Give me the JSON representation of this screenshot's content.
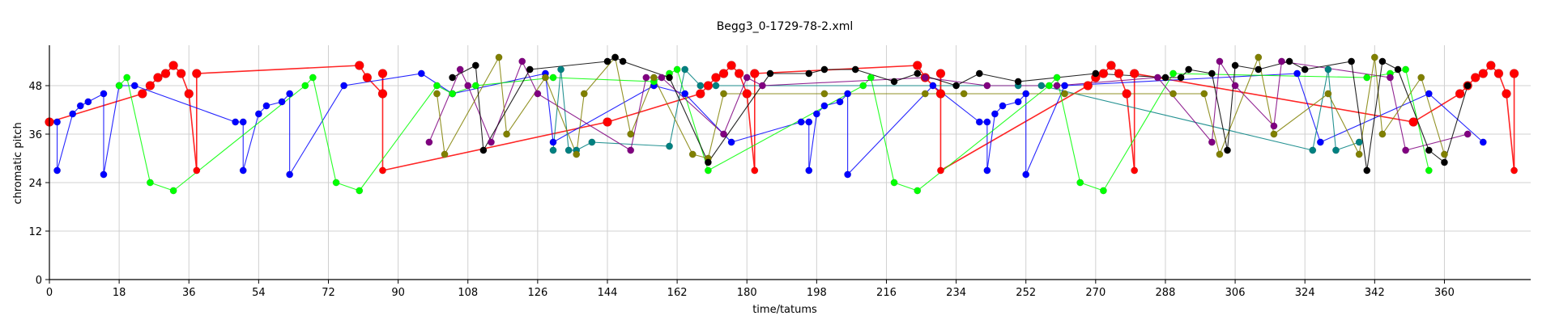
{
  "chart_data": {
    "type": "scatter",
    "title": "Begg3_0-1729-78-2.xml",
    "xlabel": "time/tatums",
    "ylabel": "chromatic pitch",
    "xlim": [
      0,
      376
    ],
    "ylim": [
      0,
      58
    ],
    "grid": true,
    "x_ticks": [
      0,
      18,
      36,
      54,
      72,
      90,
      108,
      126,
      144,
      162,
      180,
      198,
      216,
      234,
      252,
      270,
      288,
      306,
      324,
      342,
      360
    ],
    "y_ticks": [
      0,
      12,
      24,
      36,
      48
    ],
    "series": [
      {
        "color": "#ff0000",
        "points": [
          [
            0,
            39
          ],
          [
            24,
            46
          ],
          [
            26,
            48
          ],
          [
            28,
            50
          ],
          [
            30,
            51
          ],
          [
            32,
            53
          ],
          [
            34,
            51
          ],
          [
            36,
            46
          ],
          [
            38,
            27
          ],
          [
            38,
            51
          ],
          [
            80,
            53
          ],
          [
            82,
            50
          ],
          [
            86,
            46
          ],
          [
            86,
            51
          ],
          [
            86,
            27
          ],
          [
            144,
            39
          ],
          [
            168,
            46
          ],
          [
            170,
            48
          ],
          [
            172,
            50
          ],
          [
            174,
            51
          ],
          [
            176,
            53
          ],
          [
            178,
            51
          ],
          [
            180,
            46
          ],
          [
            182,
            27
          ],
          [
            182,
            51
          ],
          [
            224,
            53
          ],
          [
            226,
            50
          ],
          [
            230,
            46
          ],
          [
            230,
            51
          ],
          [
            230,
            27
          ],
          [
            268,
            48
          ],
          [
            270,
            50
          ],
          [
            272,
            51
          ],
          [
            274,
            53
          ],
          [
            276,
            51
          ],
          [
            278,
            46
          ],
          [
            280,
            27
          ],
          [
            280,
            51
          ],
          [
            352,
            39
          ],
          [
            364,
            46
          ],
          [
            366,
            48
          ],
          [
            368,
            50
          ],
          [
            370,
            51
          ],
          [
            372,
            53
          ],
          [
            374,
            51
          ],
          [
            376,
            46
          ],
          [
            378,
            27
          ],
          [
            378,
            51
          ]
        ]
      },
      {
        "color": "#0000ff",
        "points": [
          [
            2,
            39
          ],
          [
            2,
            27
          ],
          [
            6,
            41
          ],
          [
            8,
            43
          ],
          [
            10,
            44
          ],
          [
            14,
            46
          ],
          [
            14,
            26
          ],
          [
            18,
            48
          ],
          [
            22,
            48
          ],
          [
            48,
            39
          ],
          [
            50,
            39
          ],
          [
            50,
            27
          ],
          [
            54,
            41
          ],
          [
            56,
            43
          ],
          [
            60,
            44
          ],
          [
            62,
            46
          ],
          [
            62,
            26
          ],
          [
            76,
            48
          ],
          [
            96,
            51
          ],
          [
            104,
            46
          ],
          [
            128,
            51
          ],
          [
            130,
            34
          ],
          [
            156,
            48
          ],
          [
            164,
            46
          ],
          [
            176,
            34
          ],
          [
            194,
            39
          ],
          [
            196,
            39
          ],
          [
            196,
            27
          ],
          [
            198,
            41
          ],
          [
            200,
            43
          ],
          [
            204,
            44
          ],
          [
            206,
            46
          ],
          [
            206,
            26
          ],
          [
            228,
            48
          ],
          [
            240,
            39
          ],
          [
            242,
            39
          ],
          [
            242,
            27
          ],
          [
            244,
            41
          ],
          [
            246,
            43
          ],
          [
            250,
            44
          ],
          [
            252,
            46
          ],
          [
            252,
            26
          ],
          [
            262,
            48
          ],
          [
            322,
            51
          ],
          [
            328,
            34
          ],
          [
            356,
            46
          ],
          [
            370,
            34
          ]
        ]
      },
      {
        "color": "#00ff00",
        "points": [
          [
            18,
            48
          ],
          [
            20,
            50
          ],
          [
            26,
            24
          ],
          [
            32,
            22
          ],
          [
            66,
            48
          ],
          [
            68,
            50
          ],
          [
            74,
            24
          ],
          [
            80,
            22
          ],
          [
            100,
            48
          ],
          [
            104,
            46
          ],
          [
            110,
            48
          ],
          [
            130,
            50
          ],
          [
            156,
            49
          ],
          [
            160,
            51
          ],
          [
            162,
            52
          ],
          [
            170,
            27
          ],
          [
            210,
            48
          ],
          [
            212,
            50
          ],
          [
            218,
            24
          ],
          [
            224,
            22
          ],
          [
            258,
            48
          ],
          [
            260,
            50
          ],
          [
            266,
            24
          ],
          [
            272,
            22
          ],
          [
            290,
            51
          ],
          [
            340,
            50
          ],
          [
            346,
            51
          ],
          [
            350,
            52
          ],
          [
            356,
            27
          ]
        ]
      },
      {
        "color": "#008080",
        "points": [
          [
            130,
            32
          ],
          [
            132,
            52
          ],
          [
            134,
            32
          ],
          [
            136,
            32
          ],
          [
            140,
            34
          ],
          [
            160,
            33
          ],
          [
            164,
            52
          ],
          [
            168,
            48
          ],
          [
            172,
            48
          ],
          [
            250,
            48
          ],
          [
            256,
            48
          ],
          [
            326,
            32
          ],
          [
            330,
            52
          ],
          [
            332,
            32
          ],
          [
            338,
            34
          ]
        ]
      },
      {
        "color": "#800080",
        "points": [
          [
            98,
            34
          ],
          [
            106,
            52
          ],
          [
            108,
            48
          ],
          [
            114,
            34
          ],
          [
            122,
            54
          ],
          [
            126,
            46
          ],
          [
            150,
            32
          ],
          [
            154,
            50
          ],
          [
            158,
            50
          ],
          [
            174,
            36
          ],
          [
            180,
            50
          ],
          [
            184,
            48
          ],
          [
            226,
            50
          ],
          [
            242,
            48
          ],
          [
            260,
            48
          ],
          [
            286,
            50
          ],
          [
            300,
            34
          ],
          [
            302,
            54
          ],
          [
            306,
            48
          ],
          [
            316,
            38
          ],
          [
            318,
            54
          ],
          [
            346,
            50
          ],
          [
            350,
            32
          ],
          [
            366,
            36
          ]
        ]
      },
      {
        "color": "#808000",
        "points": [
          [
            100,
            46
          ],
          [
            102,
            31
          ],
          [
            116,
            55
          ],
          [
            118,
            36
          ],
          [
            128,
            50
          ],
          [
            136,
            31
          ],
          [
            138,
            46
          ],
          [
            146,
            55
          ],
          [
            150,
            36
          ],
          [
            156,
            50
          ],
          [
            166,
            31
          ],
          [
            170,
            30
          ],
          [
            174,
            46
          ],
          [
            200,
            46
          ],
          [
            226,
            46
          ],
          [
            236,
            46
          ],
          [
            262,
            46
          ],
          [
            290,
            46
          ],
          [
            298,
            46
          ],
          [
            302,
            31
          ],
          [
            312,
            55
          ],
          [
            316,
            36
          ],
          [
            330,
            46
          ],
          [
            338,
            31
          ],
          [
            342,
            55
          ],
          [
            344,
            36
          ],
          [
            354,
            50
          ],
          [
            360,
            31
          ]
        ]
      },
      {
        "color": "#000000",
        "points": [
          [
            104,
            50
          ],
          [
            110,
            53
          ],
          [
            112,
            32
          ],
          [
            124,
            52
          ],
          [
            144,
            54
          ],
          [
            146,
            55
          ],
          [
            148,
            54
          ],
          [
            160,
            50
          ],
          [
            170,
            29
          ],
          [
            186,
            51
          ],
          [
            196,
            51
          ],
          [
            200,
            52
          ],
          [
            208,
            52
          ],
          [
            218,
            49
          ],
          [
            224,
            51
          ],
          [
            234,
            48
          ],
          [
            240,
            51
          ],
          [
            250,
            49
          ],
          [
            270,
            51
          ],
          [
            288,
            50
          ],
          [
            292,
            50
          ],
          [
            294,
            52
          ],
          [
            300,
            51
          ],
          [
            304,
            32
          ],
          [
            306,
            53
          ],
          [
            312,
            52
          ],
          [
            320,
            54
          ],
          [
            324,
            52
          ],
          [
            336,
            54
          ],
          [
            340,
            27
          ],
          [
            344,
            54
          ],
          [
            348,
            52
          ],
          [
            356,
            32
          ],
          [
            360,
            29
          ],
          [
            366,
            48
          ]
        ]
      }
    ]
  }
}
